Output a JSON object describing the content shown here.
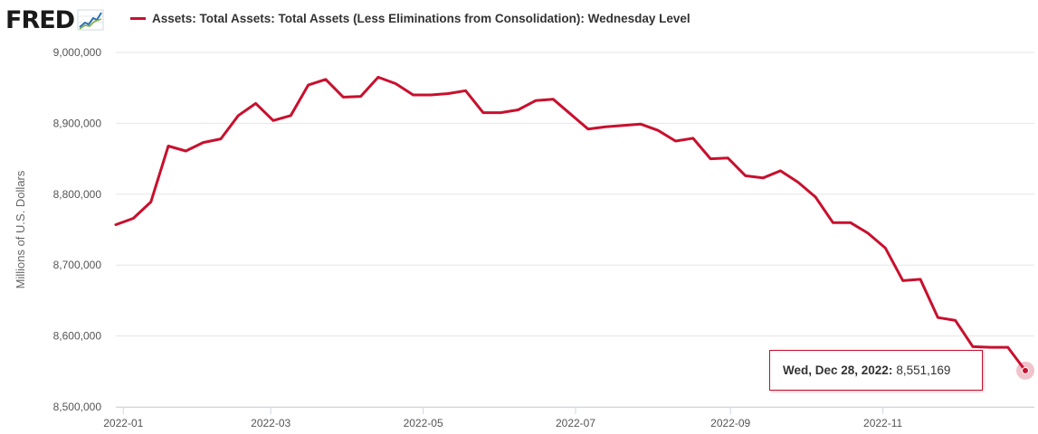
{
  "header": {
    "logo_text": "FRED",
    "logo_icon": "trend-graph-icon",
    "series_title": "Assets: Total Assets: Total Assets (Less Eliminations from Consolidation): Wednesday Level"
  },
  "colors": {
    "series": "#c8102e",
    "grid": "#e6e6e6"
  },
  "tooltip": {
    "label": "Wed, Dec 28, 2022:",
    "value": "8,551,169"
  },
  "chart_data": {
    "type": "line",
    "title": "",
    "xlabel": "",
    "ylabel": "Millions of U.S. Dollars",
    "ylim": [
      8500000,
      9000000
    ],
    "xlim": [
      "2021-12-29",
      "2022-12-28"
    ],
    "grid": "horizontal",
    "y_ticks": [
      {
        "value": 8500000,
        "label": "8,500,000"
      },
      {
        "value": 8600000,
        "label": "8,600,000"
      },
      {
        "value": 8700000,
        "label": "8,700,000"
      },
      {
        "value": 8800000,
        "label": "8,800,000"
      },
      {
        "value": 8900000,
        "label": "8,900,000"
      },
      {
        "value": 9000000,
        "label": "9,000,000"
      }
    ],
    "x_ticks": [
      {
        "value": "2022-01-01",
        "label": "2022-01"
      },
      {
        "value": "2022-03-01",
        "label": "2022-03"
      },
      {
        "value": "2022-05-01",
        "label": "2022-05"
      },
      {
        "value": "2022-07-01",
        "label": "2022-07"
      },
      {
        "value": "2022-09-01",
        "label": "2022-09"
      },
      {
        "value": "2022-11-01",
        "label": "2022-11"
      }
    ],
    "series": [
      {
        "name": "Assets: Total Assets: Total Assets (Less Eliminations from Consolidation): Wednesday Level",
        "points": [
          [
            "2021-12-29",
            8757000
          ],
          [
            "2022-01-05",
            8766000
          ],
          [
            "2022-01-12",
            8789000
          ],
          [
            "2022-01-19",
            8868000
          ],
          [
            "2022-01-26",
            8861000
          ],
          [
            "2022-02-02",
            8873000
          ],
          [
            "2022-02-09",
            8878000
          ],
          [
            "2022-02-16",
            8911000
          ],
          [
            "2022-02-23",
            8928000
          ],
          [
            "2022-03-02",
            8904000
          ],
          [
            "2022-03-09",
            8911000
          ],
          [
            "2022-03-16",
            8954000
          ],
          [
            "2022-03-23",
            8962000
          ],
          [
            "2022-03-30",
            8937000
          ],
          [
            "2022-04-06",
            8938000
          ],
          [
            "2022-04-13",
            8965000
          ],
          [
            "2022-04-20",
            8956000
          ],
          [
            "2022-04-27",
            8940000
          ],
          [
            "2022-05-04",
            8940000
          ],
          [
            "2022-05-11",
            8942000
          ],
          [
            "2022-05-18",
            8946000
          ],
          [
            "2022-05-25",
            8915000
          ],
          [
            "2022-06-01",
            8915000
          ],
          [
            "2022-06-08",
            8919000
          ],
          [
            "2022-06-15",
            8932000
          ],
          [
            "2022-06-22",
            8934000
          ],
          [
            "2022-06-29",
            8913000
          ],
          [
            "2022-07-06",
            8892000
          ],
          [
            "2022-07-13",
            8895000
          ],
          [
            "2022-07-20",
            8897000
          ],
          [
            "2022-07-27",
            8899000
          ],
          [
            "2022-08-03",
            8890000
          ],
          [
            "2022-08-10",
            8875000
          ],
          [
            "2022-08-17",
            8879000
          ],
          [
            "2022-08-24",
            8850000
          ],
          [
            "2022-08-31",
            8851000
          ],
          [
            "2022-09-07",
            8826000
          ],
          [
            "2022-09-14",
            8823000
          ],
          [
            "2022-09-21",
            8833000
          ],
          [
            "2022-09-28",
            8817000
          ],
          [
            "2022-10-05",
            8796000
          ],
          [
            "2022-10-12",
            8760000
          ],
          [
            "2022-10-19",
            8760000
          ],
          [
            "2022-10-26",
            8745000
          ],
          [
            "2022-11-02",
            8724000
          ],
          [
            "2022-11-09",
            8678000
          ],
          [
            "2022-11-16",
            8680000
          ],
          [
            "2022-11-23",
            8626000
          ],
          [
            "2022-11-30",
            8622000
          ],
          [
            "2022-12-07",
            8585000
          ],
          [
            "2022-12-14",
            8584000
          ],
          [
            "2022-12-21",
            8584000
          ],
          [
            "2022-12-28",
            8551169
          ]
        ]
      }
    ]
  }
}
